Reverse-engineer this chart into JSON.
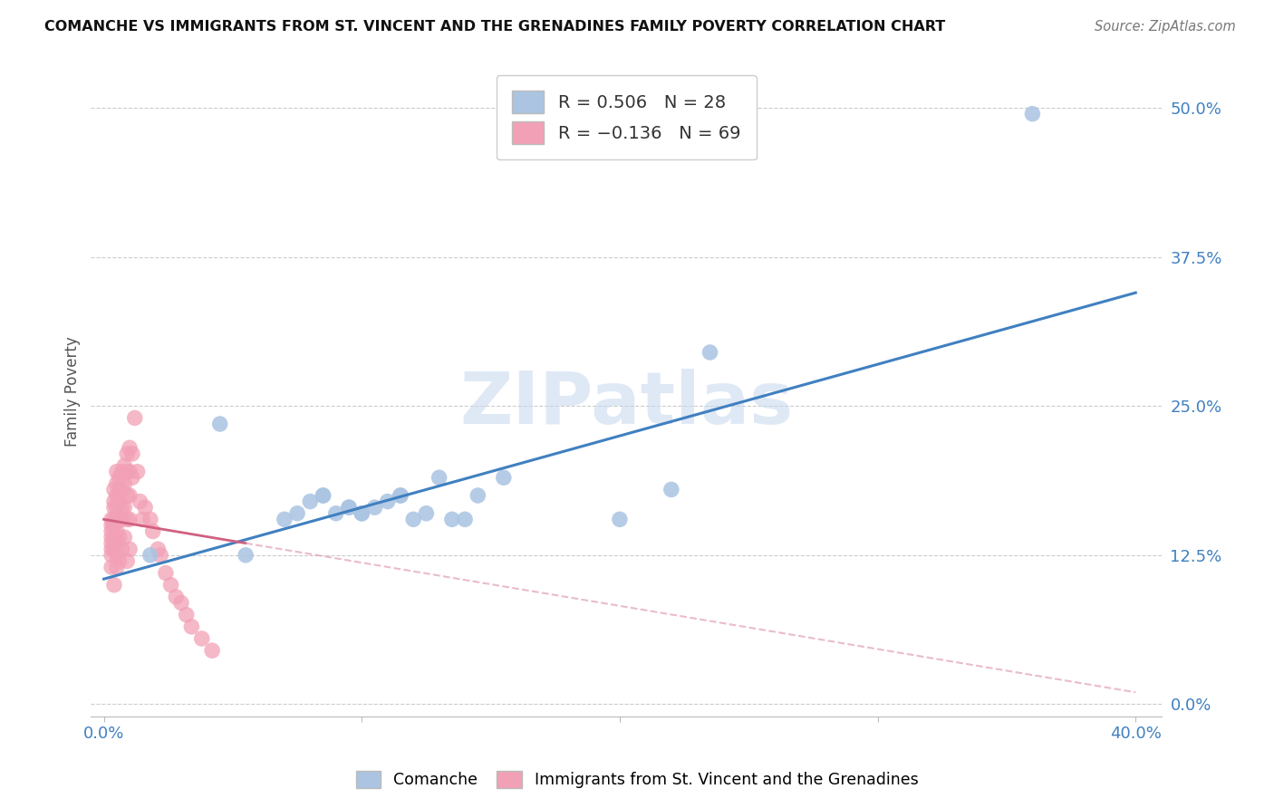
{
  "title": "COMANCHE VS IMMIGRANTS FROM ST. VINCENT AND THE GRENADINES FAMILY POVERTY CORRELATION CHART",
  "source": "Source: ZipAtlas.com",
  "ylabel": "Family Poverty",
  "ytick_labels": [
    "0.0%",
    "12.5%",
    "25.0%",
    "37.5%",
    "50.0%"
  ],
  "ytick_values": [
    0.0,
    0.125,
    0.25,
    0.375,
    0.5
  ],
  "xtick_labels": [
    "0.0%",
    "",
    "",
    "",
    "40.0%"
  ],
  "xtick_values": [
    0.0,
    0.1,
    0.2,
    0.3,
    0.4
  ],
  "xlim": [
    -0.005,
    0.41
  ],
  "ylim": [
    -0.01,
    0.535
  ],
  "blue_R": 0.506,
  "blue_N": 28,
  "pink_R": -0.136,
  "pink_N": 69,
  "legend_label_blue": "Comanche",
  "legend_label_pink": "Immigrants from St. Vincent and the Grenadines",
  "blue_color": "#aac4e2",
  "blue_line_color": "#4080c0",
  "pink_color": "#f2a0b5",
  "pink_line_color": "#d06080",
  "pink_line_dash_color": "#e0a0b5",
  "watermark": "ZIPatlas",
  "blue_line_x0": 0.0,
  "blue_line_x1": 0.4,
  "blue_line_y0": 0.105,
  "blue_line_y1": 0.345,
  "pink_line_solid_x0": 0.0,
  "pink_line_solid_x1": 0.055,
  "pink_line_y0": 0.155,
  "pink_line_y1": 0.135,
  "pink_line_dash_x0": 0.055,
  "pink_line_dash_x1": 0.4,
  "pink_line_dash_y0": 0.135,
  "pink_line_dash_y1": 0.01,
  "blue_scatter_x": [
    0.018,
    0.045,
    0.055,
    0.07,
    0.075,
    0.08,
    0.085,
    0.085,
    0.09,
    0.095,
    0.095,
    0.1,
    0.1,
    0.105,
    0.11,
    0.115,
    0.115,
    0.12,
    0.125,
    0.13,
    0.135,
    0.14,
    0.145,
    0.155,
    0.2,
    0.22,
    0.235,
    0.36
  ],
  "blue_scatter_y": [
    0.125,
    0.235,
    0.125,
    0.155,
    0.16,
    0.17,
    0.175,
    0.175,
    0.16,
    0.165,
    0.165,
    0.16,
    0.16,
    0.165,
    0.17,
    0.175,
    0.175,
    0.155,
    0.16,
    0.19,
    0.155,
    0.155,
    0.175,
    0.19,
    0.155,
    0.18,
    0.295,
    0.495
  ],
  "pink_scatter_x": [
    0.003,
    0.003,
    0.003,
    0.003,
    0.003,
    0.003,
    0.003,
    0.003,
    0.004,
    0.004,
    0.004,
    0.004,
    0.004,
    0.004,
    0.004,
    0.004,
    0.005,
    0.005,
    0.005,
    0.005,
    0.005,
    0.005,
    0.005,
    0.005,
    0.005,
    0.006,
    0.006,
    0.006,
    0.006,
    0.006,
    0.006,
    0.007,
    0.007,
    0.007,
    0.007,
    0.007,
    0.008,
    0.008,
    0.008,
    0.008,
    0.009,
    0.009,
    0.009,
    0.009,
    0.009,
    0.01,
    0.01,
    0.01,
    0.01,
    0.01,
    0.011,
    0.011,
    0.012,
    0.013,
    0.014,
    0.015,
    0.016,
    0.018,
    0.019,
    0.021,
    0.022,
    0.024,
    0.026,
    0.028,
    0.03,
    0.032,
    0.034,
    0.038,
    0.042
  ],
  "pink_scatter_y": [
    0.155,
    0.15,
    0.145,
    0.14,
    0.135,
    0.13,
    0.125,
    0.115,
    0.18,
    0.17,
    0.165,
    0.155,
    0.15,
    0.14,
    0.13,
    0.1,
    0.195,
    0.185,
    0.175,
    0.165,
    0.155,
    0.145,
    0.135,
    0.125,
    0.115,
    0.19,
    0.18,
    0.17,
    0.155,
    0.14,
    0.12,
    0.195,
    0.18,
    0.165,
    0.155,
    0.13,
    0.2,
    0.185,
    0.165,
    0.14,
    0.21,
    0.195,
    0.175,
    0.155,
    0.12,
    0.215,
    0.195,
    0.175,
    0.155,
    0.13,
    0.21,
    0.19,
    0.24,
    0.195,
    0.17,
    0.155,
    0.165,
    0.155,
    0.145,
    0.13,
    0.125,
    0.11,
    0.1,
    0.09,
    0.085,
    0.075,
    0.065,
    0.055,
    0.045
  ]
}
